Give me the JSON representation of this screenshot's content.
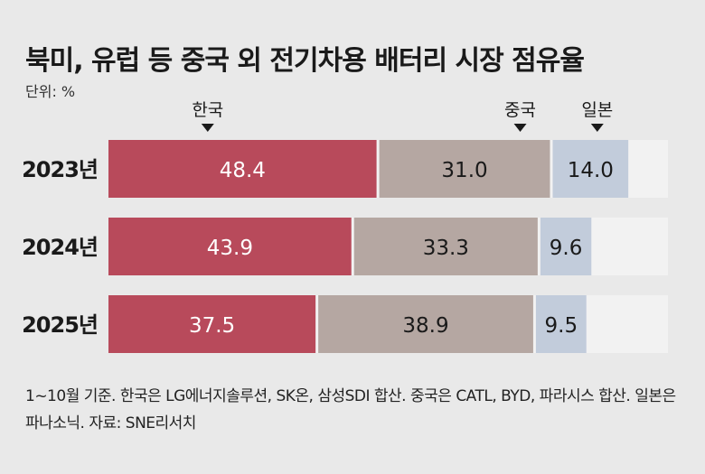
{
  "title": "북미, 유럽 등 중국 외 전기차용 배터리 시장 점유율",
  "unit_label": "단위: %",
  "footnote": "1~10월 기준. 한국은 LG에너지솔루션, SK온, 삼성SDI 합산. 중국은 CATL, BYD, 파라시스 합산. 일본은 파나소닉. 자료: SNE리서치",
  "colors": {
    "korea": "#b84a5b",
    "china": "#b5a7a2",
    "japan": "#c2ccdb",
    "other": "#f2f2f2"
  },
  "chart_data": {
    "type": "bar",
    "orientation": "horizontal-stacked",
    "xlim": [
      0,
      100
    ],
    "categories": [
      "2023년",
      "2024년",
      "2025년"
    ],
    "series": [
      {
        "name": "한국",
        "values": [
          48.4,
          43.9,
          37.5
        ]
      },
      {
        "name": "중국",
        "values": [
          31.0,
          33.3,
          38.9
        ]
      },
      {
        "name": "일본",
        "values": [
          14.0,
          9.6,
          9.5
        ]
      }
    ],
    "legend": "top"
  }
}
